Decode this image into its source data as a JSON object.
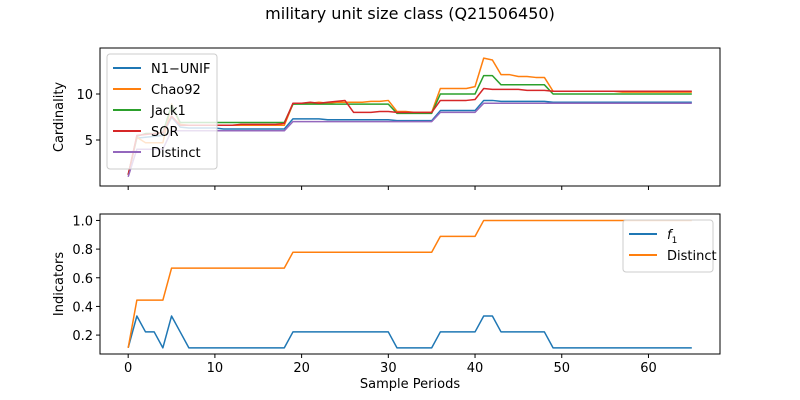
{
  "title": "military unit size class (Q21506450)",
  "chart_data": [
    {
      "type": "line",
      "ylabel": "Cardinality",
      "xlabel": "",
      "xlim": [
        -3.25,
        68.25
      ],
      "ylim": [
        0.0,
        15.0
      ],
      "yticks": [
        5,
        10
      ],
      "xticks": [
        0,
        10,
        20,
        30,
        40,
        50,
        60
      ],
      "show_xtick_labels": false,
      "legend_position": "upper-left",
      "series": [
        {
          "name": "N1−UNIF",
          "color": "#1f77b4",
          "x": [
            0,
            1,
            2,
            3,
            4,
            5,
            6,
            7,
            8,
            9,
            10,
            11,
            12,
            13,
            14,
            15,
            16,
            17,
            18,
            19,
            20,
            21,
            22,
            23,
            24,
            25,
            26,
            27,
            28,
            29,
            30,
            31,
            32,
            33,
            34,
            35,
            36,
            37,
            38,
            39,
            40,
            41,
            42,
            43,
            44,
            45,
            46,
            47,
            48,
            49,
            50,
            51,
            52,
            53,
            54,
            55,
            56,
            57,
            58,
            59,
            60,
            61,
            62,
            63,
            64,
            65
          ],
          "y": [
            1.2,
            5.2,
            5.3,
            5.4,
            5.5,
            7.5,
            6.4,
            6.3,
            6.3,
            6.3,
            6.3,
            6.2,
            6.2,
            6.2,
            6.2,
            6.2,
            6.2,
            6.2,
            6.2,
            7.3,
            7.3,
            7.3,
            7.3,
            7.2,
            7.2,
            7.2,
            7.2,
            7.2,
            7.2,
            7.2,
            7.2,
            7.1,
            7.1,
            7.1,
            7.1,
            7.1,
            8.2,
            8.2,
            8.2,
            8.2,
            8.2,
            9.3,
            9.3,
            9.2,
            9.2,
            9.2,
            9.2,
            9.2,
            9.2,
            9.1,
            9.1,
            9.1,
            9.1,
            9.1,
            9.1,
            9.1,
            9.1,
            9.1,
            9.1,
            9.1,
            9.1,
            9.1,
            9.1,
            9.1,
            9.1,
            9.1
          ]
        },
        {
          "name": "Chao92",
          "color": "#ff7f0e",
          "x": [
            0,
            1,
            2,
            3,
            4,
            5,
            6,
            7,
            8,
            9,
            10,
            11,
            12,
            13,
            14,
            15,
            16,
            17,
            18,
            19,
            20,
            21,
            22,
            23,
            24,
            25,
            26,
            27,
            28,
            29,
            30,
            31,
            32,
            33,
            34,
            35,
            36,
            37,
            38,
            39,
            40,
            41,
            42,
            43,
            44,
            45,
            46,
            47,
            48,
            49,
            50,
            51,
            52,
            53,
            54,
            55,
            56,
            57,
            58,
            59,
            60,
            61,
            62,
            63,
            64,
            65
          ],
          "y": [
            1.2,
            5.3,
            4.7,
            4.7,
            4.7,
            8.9,
            6.7,
            6.6,
            6.6,
            6.6,
            6.6,
            6.6,
            6.6,
            6.6,
            6.6,
            6.6,
            6.6,
            6.6,
            6.6,
            8.9,
            9.0,
            9.0,
            9.1,
            9.0,
            9.1,
            9.1,
            9.1,
            9.1,
            9.2,
            9.2,
            9.3,
            8.1,
            8.1,
            8.0,
            8.0,
            8.0,
            10.6,
            10.6,
            10.6,
            10.6,
            10.8,
            13.9,
            13.7,
            12.1,
            12.1,
            11.9,
            11.9,
            11.8,
            11.8,
            10.3,
            10.3,
            10.3,
            10.3,
            10.3,
            10.3,
            10.3,
            10.3,
            10.2,
            10.2,
            10.2,
            10.2,
            10.2,
            10.2,
            10.2,
            10.2,
            10.2
          ]
        },
        {
          "name": "Jack1",
          "color": "#2ca02c",
          "x": [
            0,
            1,
            2,
            3,
            4,
            5,
            6,
            7,
            8,
            9,
            10,
            11,
            12,
            13,
            14,
            15,
            16,
            17,
            18,
            19,
            20,
            21,
            22,
            23,
            24,
            25,
            26,
            27,
            28,
            29,
            30,
            31,
            32,
            33,
            34,
            35,
            36,
            37,
            38,
            39,
            40,
            41,
            42,
            43,
            44,
            45,
            46,
            47,
            48,
            49,
            50,
            51,
            52,
            53,
            54,
            55,
            56,
            57,
            58,
            59,
            60,
            61,
            62,
            63,
            64,
            65
          ],
          "y": [
            1.2,
            5.4,
            5.7,
            5.7,
            5.8,
            8.8,
            6.9,
            6.9,
            6.9,
            6.9,
            6.9,
            6.9,
            6.9,
            6.9,
            6.9,
            6.9,
            6.9,
            6.9,
            6.9,
            8.9,
            8.9,
            8.9,
            8.9,
            8.9,
            8.9,
            8.9,
            8.9,
            8.9,
            8.9,
            8.9,
            8.9,
            7.9,
            7.9,
            7.9,
            7.9,
            7.9,
            10.0,
            10.0,
            10.0,
            10.0,
            10.0,
            12.0,
            12.0,
            11.0,
            11.0,
            11.0,
            11.0,
            11.0,
            11.0,
            10.0,
            10.0,
            10.0,
            10.0,
            10.0,
            10.0,
            10.0,
            10.0,
            10.0,
            10.0,
            10.0,
            10.0,
            10.0,
            10.0,
            10.0,
            10.0,
            10.0
          ]
        },
        {
          "name": "SOR",
          "color": "#d62728",
          "x": [
            0,
            1,
            2,
            3,
            4,
            5,
            6,
            7,
            8,
            9,
            10,
            11,
            12,
            13,
            14,
            15,
            16,
            17,
            18,
            19,
            20,
            21,
            22,
            23,
            24,
            25,
            26,
            27,
            28,
            29,
            30,
            31,
            32,
            33,
            34,
            35,
            36,
            37,
            38,
            39,
            40,
            41,
            42,
            43,
            44,
            45,
            46,
            47,
            48,
            49,
            50,
            51,
            52,
            53,
            54,
            55,
            56,
            57,
            58,
            59,
            60,
            61,
            62,
            63,
            64,
            65
          ],
          "y": [
            1.2,
            5.5,
            5.6,
            5.7,
            5.8,
            7.6,
            6.6,
            6.6,
            6.6,
            6.6,
            6.6,
            6.6,
            6.6,
            6.7,
            6.7,
            6.7,
            6.7,
            6.7,
            6.8,
            9.0,
            9.0,
            9.1,
            9.0,
            9.1,
            9.2,
            9.3,
            8.0,
            8.0,
            8.0,
            8.1,
            8.1,
            8.0,
            8.0,
            8.0,
            8.0,
            8.0,
            9.3,
            9.3,
            9.3,
            9.3,
            9.4,
            10.6,
            10.5,
            10.5,
            10.5,
            10.5,
            10.4,
            10.4,
            10.4,
            10.3,
            10.3,
            10.3,
            10.3,
            10.3,
            10.3,
            10.3,
            10.3,
            10.3,
            10.3,
            10.3,
            10.3,
            10.3,
            10.3,
            10.3,
            10.3,
            10.3
          ]
        },
        {
          "name": "Distinct",
          "color": "#9467bd",
          "x": [
            0,
            1,
            2,
            3,
            4,
            5,
            6,
            7,
            8,
            9,
            10,
            11,
            12,
            13,
            14,
            15,
            16,
            17,
            18,
            19,
            20,
            21,
            22,
            23,
            24,
            25,
            26,
            27,
            28,
            29,
            30,
            31,
            32,
            33,
            34,
            35,
            36,
            37,
            38,
            39,
            40,
            41,
            42,
            43,
            44,
            45,
            46,
            47,
            48,
            49,
            50,
            51,
            52,
            53,
            54,
            55,
            56,
            57,
            58,
            59,
            60,
            61,
            62,
            63,
            64,
            65
          ],
          "y": [
            1,
            4,
            4,
            4,
            4,
            6,
            6,
            6,
            6,
            6,
            6,
            6,
            6,
            6,
            6,
            6,
            6,
            6,
            6,
            7,
            7,
            7,
            7,
            7,
            7,
            7,
            7,
            7,
            7,
            7,
            7,
            7,
            7,
            7,
            7,
            7,
            8,
            8,
            8,
            8,
            8,
            9,
            9,
            9,
            9,
            9,
            9,
            9,
            9,
            9,
            9,
            9,
            9,
            9,
            9,
            9,
            9,
            9,
            9,
            9,
            9,
            9,
            9,
            9,
            9,
            9
          ]
        }
      ]
    },
    {
      "type": "line",
      "ylabel": "Indicators",
      "xlabel": "Sample Periods",
      "xlim": [
        -3.25,
        68.25
      ],
      "ylim": [
        0.068,
        1.045
      ],
      "yticks": [
        0.2,
        0.4,
        0.6,
        0.8,
        1.0
      ],
      "ytick_labels": [
        "0.2",
        "0.4",
        "0.6",
        "0.8",
        "1.0"
      ],
      "xticks": [
        0,
        10,
        20,
        30,
        40,
        50,
        60
      ],
      "xtick_labels": [
        "0",
        "10",
        "20",
        "30",
        "40",
        "50",
        "60"
      ],
      "show_xtick_labels": true,
      "legend_position": "upper-right",
      "series": [
        {
          "name": "f",
          "name_subscript": "1",
          "color": "#1f77b4",
          "x": [
            0,
            1,
            2,
            3,
            4,
            5,
            6,
            7,
            8,
            9,
            10,
            11,
            12,
            13,
            14,
            15,
            16,
            17,
            18,
            19,
            20,
            21,
            22,
            23,
            24,
            25,
            26,
            27,
            28,
            29,
            30,
            31,
            32,
            33,
            34,
            35,
            36,
            37,
            38,
            39,
            40,
            41,
            42,
            43,
            44,
            45,
            46,
            47,
            48,
            49,
            50,
            51,
            52,
            53,
            54,
            55,
            56,
            57,
            58,
            59,
            60,
            61,
            62,
            63,
            64,
            65
          ],
          "y": [
            0.111,
            0.333,
            0.222,
            0.222,
            0.111,
            0.333,
            0.222,
            0.111,
            0.111,
            0.111,
            0.111,
            0.111,
            0.111,
            0.111,
            0.111,
            0.111,
            0.111,
            0.111,
            0.111,
            0.222,
            0.222,
            0.222,
            0.222,
            0.222,
            0.222,
            0.222,
            0.222,
            0.222,
            0.222,
            0.222,
            0.222,
            0.111,
            0.111,
            0.111,
            0.111,
            0.111,
            0.222,
            0.222,
            0.222,
            0.222,
            0.222,
            0.333,
            0.333,
            0.222,
            0.222,
            0.222,
            0.222,
            0.222,
            0.222,
            0.111,
            0.111,
            0.111,
            0.111,
            0.111,
            0.111,
            0.111,
            0.111,
            0.111,
            0.111,
            0.111,
            0.111,
            0.111,
            0.111,
            0.111,
            0.111,
            0.111
          ]
        },
        {
          "name": "Distinct",
          "color": "#ff7f0e",
          "x": [
            0,
            1,
            2,
            3,
            4,
            5,
            6,
            7,
            8,
            9,
            10,
            11,
            12,
            13,
            14,
            15,
            16,
            17,
            18,
            19,
            20,
            21,
            22,
            23,
            24,
            25,
            26,
            27,
            28,
            29,
            30,
            31,
            32,
            33,
            34,
            35,
            36,
            37,
            38,
            39,
            40,
            41,
            42,
            43,
            44,
            45,
            46,
            47,
            48,
            49,
            50,
            51,
            52,
            53,
            54,
            55,
            56,
            57,
            58,
            59,
            60,
            61,
            62,
            63,
            64,
            65
          ],
          "y": [
            0.111,
            0.444,
            0.444,
            0.444,
            0.444,
            0.667,
            0.667,
            0.667,
            0.667,
            0.667,
            0.667,
            0.667,
            0.667,
            0.667,
            0.667,
            0.667,
            0.667,
            0.667,
            0.667,
            0.778,
            0.778,
            0.778,
            0.778,
            0.778,
            0.778,
            0.778,
            0.778,
            0.778,
            0.778,
            0.778,
            0.778,
            0.778,
            0.778,
            0.778,
            0.778,
            0.778,
            0.889,
            0.889,
            0.889,
            0.889,
            0.889,
            1.0,
            1.0,
            1.0,
            1.0,
            1.0,
            1.0,
            1.0,
            1.0,
            1.0,
            1.0,
            1.0,
            1.0,
            1.0,
            1.0,
            1.0,
            1.0,
            1.0,
            1.0,
            1.0,
            1.0,
            1.0,
            1.0,
            1.0,
            1.0,
            1.0
          ]
        }
      ]
    }
  ]
}
